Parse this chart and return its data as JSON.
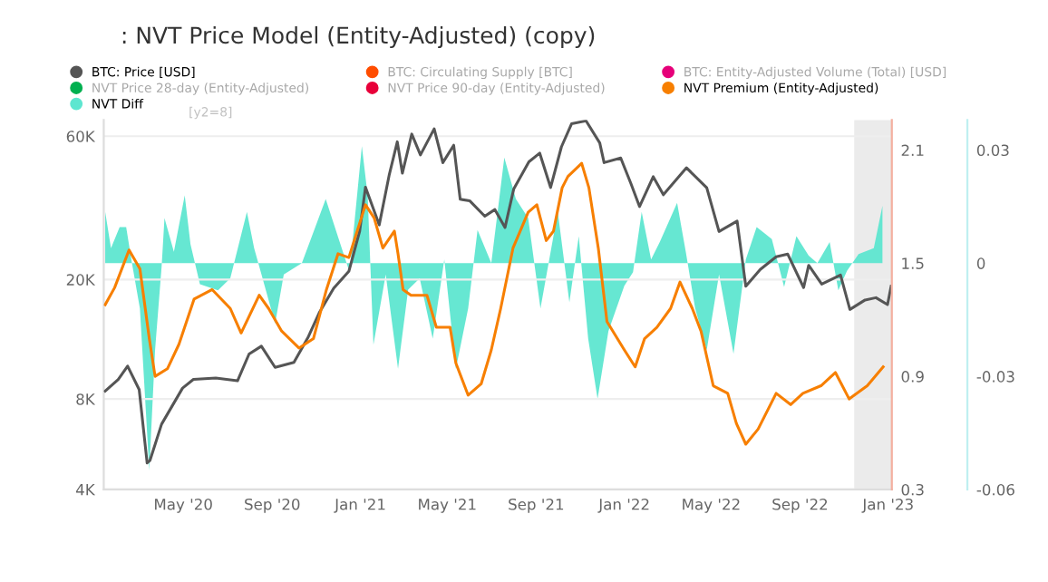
{
  "chart_data": {
    "type": "line",
    "title": ": NVT Price Model (Entity-Adjusted) (copy)",
    "annotations": [
      "[y2=8]"
    ],
    "xlim": [
      "2020-01-12",
      "2023-01-06"
    ],
    "xticks": [
      {
        "value": "2020-05-01",
        "label": "May '20"
      },
      {
        "value": "2020-09-01",
        "label": "Sep '20"
      },
      {
        "value": "2021-01-01",
        "label": "Jan '21"
      },
      {
        "value": "2021-05-01",
        "label": "May '21"
      },
      {
        "value": "2021-09-01",
        "label": "Sep '21"
      },
      {
        "value": "2022-01-01",
        "label": "Jan '22"
      },
      {
        "value": "2022-05-01",
        "label": "May '22"
      },
      {
        "value": "2022-09-01",
        "label": "Sep '22"
      },
      {
        "value": "2023-01-01",
        "label": "Jan '23"
      }
    ],
    "log": "y",
    "ylim": [
      4000,
      68000
    ],
    "yticks": [
      {
        "value": 4000,
        "label": "4K"
      },
      {
        "value": 8000,
        "label": "8K"
      },
      {
        "value": 20000,
        "label": "20K"
      },
      {
        "value": 60000,
        "label": "60K"
      }
    ],
    "y2lim": [
      0.3,
      2.26
    ],
    "y2ticks": [
      0.3,
      0.9,
      1.5,
      2.1
    ],
    "y3lim": [
      -0.06,
      0.038
    ],
    "y3ticks": [
      -0.06,
      -0.03,
      0,
      0.03
    ],
    "grid": "y",
    "legend": "top",
    "bands": [
      {
        "axis": "x",
        "from": "2022-11-15",
        "to": "2023-01-06",
        "color": "#ebebeb"
      }
    ],
    "series": [
      {
        "name": "BTC: Price [USD]",
        "color": "#555555",
        "x": [
          "2020-01-14",
          "2020-02-01",
          "2020-02-14",
          "2020-03-01",
          "2020-03-12",
          "2020-03-16",
          "2020-04-01",
          "2020-04-30",
          "2020-05-15",
          "2020-06-15",
          "2020-07-15",
          "2020-07-31",
          "2020-08-17",
          "2020-09-05",
          "2020-10-01",
          "2020-10-21",
          "2020-11-05",
          "2020-11-25",
          "2020-12-16",
          "2020-12-31",
          "2021-01-08",
          "2021-01-27",
          "2021-02-10",
          "2021-02-21",
          "2021-02-28",
          "2021-03-13",
          "2021-03-25",
          "2021-04-13",
          "2021-04-25",
          "2021-05-10",
          "2021-05-19",
          "2021-06-01",
          "2021-06-22",
          "2021-07-06",
          "2021-07-20",
          "2021-08-01",
          "2021-08-22",
          "2021-09-06",
          "2021-09-21",
          "2021-10-06",
          "2021-10-20",
          "2021-11-09",
          "2021-11-28",
          "2021-12-04",
          "2021-12-27",
          "2022-01-10",
          "2022-01-22",
          "2022-02-10",
          "2022-02-24",
          "2022-03-28",
          "2022-04-25",
          "2022-05-12",
          "2022-06-06",
          "2022-06-18",
          "2022-07-08",
          "2022-07-30",
          "2022-08-15",
          "2022-09-06",
          "2022-09-13",
          "2022-10-01",
          "2022-10-27",
          "2022-11-09",
          "2022-11-30",
          "2022-12-15",
          "2022-12-31",
          "2023-01-05"
        ],
        "values": [
          8500,
          9300,
          10300,
          8600,
          4900,
          5000,
          6600,
          8700,
          9300,
          9400,
          9200,
          11300,
          12000,
          10200,
          10600,
          12900,
          15500,
          18700,
          21300,
          29000,
          40600,
          30400,
          44800,
          57500,
          45200,
          61000,
          52000,
          63500,
          49000,
          56000,
          37000,
          36600,
          32500,
          34200,
          29800,
          40000,
          49300,
          52700,
          40500,
          55300,
          66000,
          67500,
          57000,
          49000,
          50800,
          41800,
          35000,
          44000,
          38300,
          47100,
          40400,
          28900,
          31300,
          19000,
          21600,
          23800,
          24300,
          18800,
          22300,
          19300,
          20700,
          15900,
          17100,
          17400,
          16500,
          19000
        ]
      },
      {
        "name": "BTC: Circulating Supply [BTC]",
        "color": "#ff4d00"
      },
      {
        "name": "BTC: Entity-Adjusted Volume (Total) [USD]",
        "color": "#e6007a"
      },
      {
        "name": "NVT Price 28-day (Entity-Adjusted)",
        "color": "#00b050"
      },
      {
        "name": "NVT Price 90-day (Entity-Adjusted)",
        "color": "#e8003a"
      },
      {
        "name": "NVT Premium (Entity-Adjusted)",
        "color": "#f77f00",
        "axis": "y2",
        "x": [
          "2020-01-14",
          "2020-01-27",
          "2020-02-16",
          "2020-03-02",
          "2020-03-15",
          "2020-03-23",
          "2020-04-09",
          "2020-04-25",
          "2020-05-16",
          "2020-06-10",
          "2020-07-05",
          "2020-07-20",
          "2020-08-14",
          "2020-08-27",
          "2020-09-14",
          "2020-10-08",
          "2020-10-28",
          "2020-11-15",
          "2020-12-01",
          "2020-12-16",
          "2021-01-08",
          "2021-01-20",
          "2021-02-01",
          "2021-02-17",
          "2021-02-22",
          "2021-03-01",
          "2021-03-12",
          "2021-04-03",
          "2021-04-16",
          "2021-05-05",
          "2021-05-13",
          "2021-05-30",
          "2021-06-17",
          "2021-07-01",
          "2021-07-14",
          "2021-07-31",
          "2021-08-21",
          "2021-09-02",
          "2021-09-15",
          "2021-09-25",
          "2021-10-07",
          "2021-10-15",
          "2021-11-03",
          "2021-11-13",
          "2021-11-26",
          "2021-12-08",
          "2022-01-01",
          "2022-01-16",
          "2022-01-29",
          "2022-02-15",
          "2022-03-06",
          "2022-03-19",
          "2022-04-05",
          "2022-04-17",
          "2022-05-04",
          "2022-05-24",
          "2022-06-05",
          "2022-06-18",
          "2022-07-05",
          "2022-07-30",
          "2022-08-19",
          "2022-09-05",
          "2022-09-30",
          "2022-10-20",
          "2022-11-08",
          "2022-12-03",
          "2022-12-25"
        ],
        "values": [
          1.28,
          1.37,
          1.57,
          1.47,
          1.1,
          0.9,
          0.94,
          1.07,
          1.31,
          1.36,
          1.26,
          1.13,
          1.33,
          1.26,
          1.14,
          1.05,
          1.1,
          1.36,
          1.55,
          1.53,
          1.81,
          1.74,
          1.58,
          1.67,
          1.55,
          1.36,
          1.33,
          1.33,
          1.16,
          1.16,
          0.97,
          0.8,
          0.86,
          1.04,
          1.26,
          1.58,
          1.77,
          1.81,
          1.62,
          1.67,
          1.9,
          1.96,
          2.03,
          1.9,
          1.58,
          1.19,
          1.04,
          0.95,
          1.1,
          1.16,
          1.26,
          1.4,
          1.26,
          1.14,
          0.85,
          0.81,
          0.65,
          0.54,
          0.62,
          0.81,
          0.75,
          0.81,
          0.85,
          0.92,
          0.78,
          0.85,
          0.95
        ]
      },
      {
        "name": "NVT Diff",
        "color": "#5ee6d0",
        "type": "area",
        "axis": "y3",
        "x": [
          "2020-01-14",
          "2020-01-22",
          "2020-02-03",
          "2020-02-12",
          "2020-02-20",
          "2020-03-02",
          "2020-03-15",
          "2020-03-23",
          "2020-04-01",
          "2020-04-05",
          "2020-04-18",
          "2020-05-03",
          "2020-05-11",
          "2020-05-24",
          "2020-06-18",
          "2020-07-05",
          "2020-07-28",
          "2020-08-07",
          "2020-08-23",
          "2020-09-05",
          "2020-09-17",
          "2020-10-12",
          "2020-11-14",
          "2020-12-01",
          "2020-12-17",
          "2021-01-03",
          "2021-01-11",
          "2021-01-19",
          "2021-02-05",
          "2021-02-22",
          "2021-03-08",
          "2021-03-24",
          "2021-04-11",
          "2021-04-27",
          "2021-05-13",
          "2021-05-30",
          "2021-06-12",
          "2021-07-01",
          "2021-07-19",
          "2021-08-04",
          "2021-08-21",
          "2021-09-07",
          "2021-10-01",
          "2021-10-17",
          "2021-10-30",
          "2021-11-12",
          "2021-11-25",
          "2021-12-10",
          "2022-01-01",
          "2022-01-13",
          "2022-01-25",
          "2022-02-07",
          "2022-02-19",
          "2022-03-15",
          "2022-03-27",
          "2022-04-09",
          "2022-04-25",
          "2022-05-12",
          "2022-06-01",
          "2022-06-18",
          "2022-07-03",
          "2022-07-24",
          "2022-08-10",
          "2022-08-27",
          "2022-09-13",
          "2022-09-25",
          "2022-10-12",
          "2022-10-24",
          "2022-11-05",
          "2022-11-21",
          "2022-12-12",
          "2022-12-24"
        ],
        "values": [
          0.0136,
          0.004,
          0.0096,
          0.0096,
          0,
          -0.012,
          -0.055,
          -0.023,
          -0.001,
          0.012,
          0.003,
          0.018,
          0.005,
          -0.0056,
          -0.0072,
          -0.004,
          0.0136,
          0.004,
          -0.007,
          -0.016,
          -0.003,
          0,
          0.017,
          0.007,
          -0.0024,
          0.031,
          0.018,
          -0.0216,
          -0.003,
          -0.028,
          -0.007,
          -0.004,
          -0.02,
          0.001,
          -0.028,
          -0.012,
          0.0088,
          0,
          0.028,
          0.017,
          0.012,
          -0.012,
          0.0136,
          -0.0104,
          0.0072,
          -0.02,
          -0.036,
          -0.018,
          -0.006,
          -0.0024,
          0.0136,
          0.001,
          0.0056,
          0.016,
          0.003,
          -0.012,
          -0.023,
          -0.003,
          -0.024,
          0.001,
          0.0096,
          0.0064,
          -0.0063,
          0.0072,
          0.002,
          0,
          0.0056,
          -0.0072,
          -0.002,
          0.0024,
          0.004,
          0.0152
        ]
      }
    ]
  }
}
